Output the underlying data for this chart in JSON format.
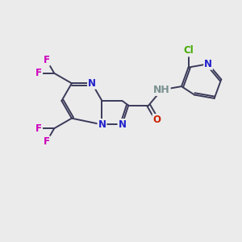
{
  "bg_color": "#ebebeb",
  "bond_color": "#3a3a5a",
  "bond_width": 1.4,
  "N_color": "#2020cc",
  "O_color": "#cc2000",
  "F_color": "#cc00bb",
  "Cl_color": "#44aa00",
  "H_color": "#7a9090",
  "font_size": 8.5,
  "fig_size": [
    3.0,
    3.0
  ],
  "dpi": 100,
  "xlim": [
    0,
    10
  ],
  "ylim": [
    0,
    10
  ]
}
